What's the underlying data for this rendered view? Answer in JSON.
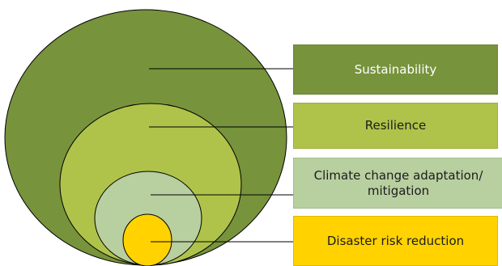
{
  "layers": [
    {
      "id": "sustainability",
      "label": "Sustainability",
      "fill": "#77933c"
    },
    {
      "id": "resilience",
      "label": "Resilience",
      "fill": "#afc34a"
    },
    {
      "id": "adaptation",
      "label": "Climate change adaptation/ mitigation",
      "fill": "#b8cfa0"
    },
    {
      "id": "drr",
      "label": "Disaster risk reduction",
      "fill": "#ffd200"
    }
  ],
  "colors": {
    "outline": "#000000",
    "connector": "#000000"
  }
}
